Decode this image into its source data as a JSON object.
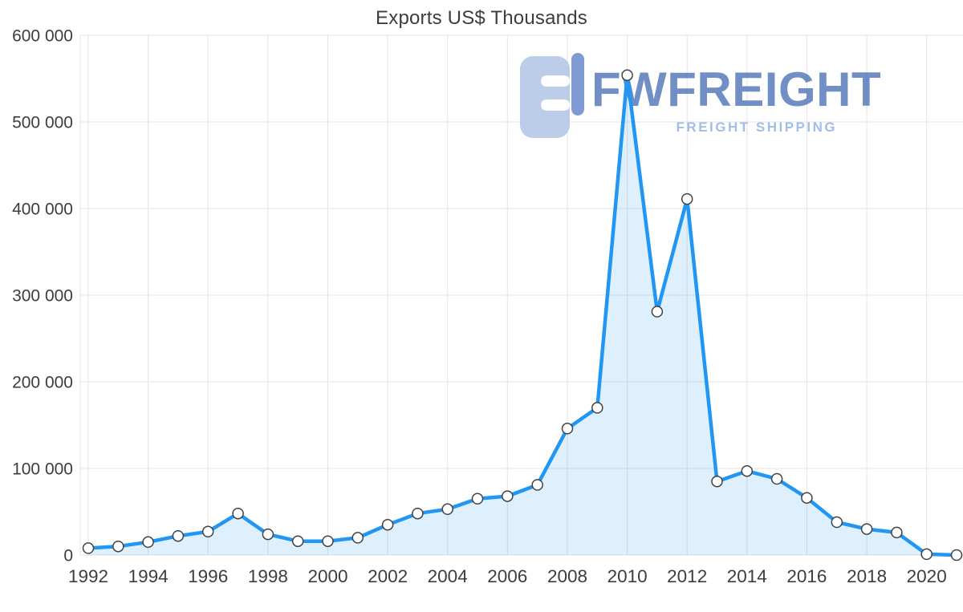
{
  "chart_data": {
    "type": "area",
    "title": "Exports US$ Thousands",
    "x": [
      1992,
      1993,
      1994,
      1995,
      1996,
      1997,
      1998,
      1999,
      2000,
      2001,
      2002,
      2003,
      2004,
      2005,
      2006,
      2007,
      2008,
      2009,
      2010,
      2011,
      2012,
      2013,
      2014,
      2015,
      2016,
      2017,
      2018,
      2019,
      2020,
      2021
    ],
    "values": [
      8000,
      10000,
      15000,
      22000,
      27000,
      48000,
      24000,
      16000,
      16000,
      20000,
      35000,
      48000,
      53000,
      65000,
      68000,
      81000,
      146000,
      170000,
      554000,
      281000,
      411000,
      85000,
      97000,
      88000,
      66000,
      38000,
      30000,
      26000,
      1000,
      0
    ],
    "xlim": [
      1992,
      2021
    ],
    "ylim": [
      0,
      600000
    ],
    "x_ticks": [
      1992,
      1994,
      1996,
      1998,
      2000,
      2002,
      2004,
      2006,
      2008,
      2010,
      2012,
      2014,
      2016,
      2018,
      2020
    ],
    "x_tick_labels": [
      "1992",
      "1994",
      "1996",
      "1998",
      "2000",
      "2002",
      "2004",
      "2006",
      "2008",
      "2010",
      "2012",
      "2014",
      "2016",
      "2018",
      "2020"
    ],
    "y_ticks": [
      0,
      100000,
      200000,
      300000,
      400000,
      500000,
      600000
    ],
    "y_tick_labels": [
      "0",
      "100 000",
      "200 000",
      "300 000",
      "400 000",
      "500 000",
      "600 000"
    ],
    "grid": true,
    "legend": "none",
    "line_color": "#2196f3",
    "fill_color": "#2196f3",
    "fill_opacity": 0.15,
    "marker_fill": "#ffffff",
    "marker_stroke": "#424242",
    "grid_color": "#e3e3e3",
    "tick_color": "#3d3d3d",
    "title_color": "#3d3d3d"
  },
  "watermark": {
    "brand": "FWFREIGHT",
    "tagline": "FREIGHT SHIPPING",
    "brand_color": "#4a6fb5",
    "tagline_color": "#9bb9e2",
    "icon_color": "#b7c9e9",
    "icon_accent_color": "#7591cf"
  }
}
